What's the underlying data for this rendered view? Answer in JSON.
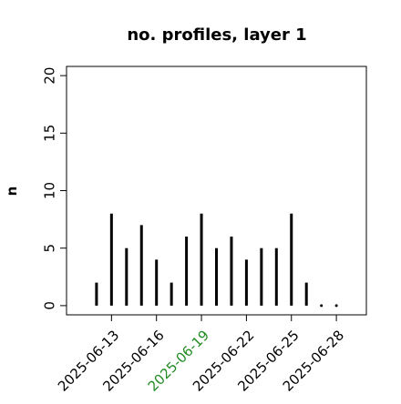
{
  "chart_data": {
    "type": "stem",
    "title": "no. profiles, layer 1",
    "y_label": "n",
    "x": [
      "2025-06-12",
      "2025-06-13",
      "2025-06-14",
      "2025-06-15",
      "2025-06-16",
      "2025-06-17",
      "2025-06-18",
      "2025-06-19",
      "2025-06-20",
      "2025-06-21",
      "2025-06-22",
      "2025-06-23",
      "2025-06-24",
      "2025-06-25",
      "2025-06-26",
      "2025-06-27",
      "2025-06-28"
    ],
    "values": [
      2,
      8,
      5,
      7,
      4,
      2,
      6,
      8,
      5,
      6,
      4,
      5,
      5,
      8,
      2,
      0,
      0
    ],
    "color": "#000000",
    "xlim": [
      "2025-06-10",
      "2025-06-30"
    ],
    "xticks": [
      "2025-06-13",
      "2025-06-16",
      "2025-06-19",
      "2025-06-22",
      "2025-06-25",
      "2025-06-28"
    ],
    "xtick_colors": [
      "#000000",
      "#000000",
      "#228b22",
      "#000000",
      "#000000",
      "#000000"
    ],
    "ylim": [
      -0.8,
      20.8
    ],
    "yticks": [
      0,
      5,
      10,
      15,
      20
    ]
  }
}
